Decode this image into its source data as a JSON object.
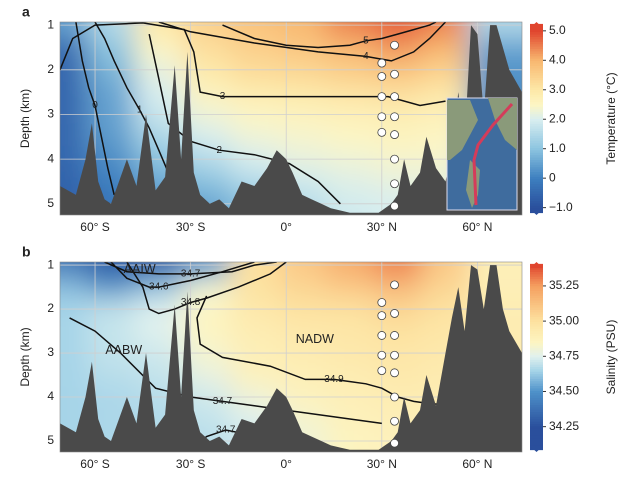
{
  "chart_data": [
    {
      "type": "contour",
      "panel": "a",
      "ylabel": "Depth (km)",
      "xlim": [
        -71,
        74
      ],
      "ylim": [
        0.93,
        5.25
      ],
      "y_inverted": true,
      "grid": true,
      "xticks": [
        {
          "value": -60,
          "label": "60° S"
        },
        {
          "value": -30,
          "label": "30° S"
        },
        {
          "value": 0,
          "label": "0°"
        },
        {
          "value": 30,
          "label": "30° N"
        },
        {
          "value": 60,
          "label": "60° N"
        }
      ],
      "yticks": [
        1,
        2,
        3,
        4,
        5
      ],
      "colorbar_label": "Temperature (°C)",
      "clim": [
        -1.25,
        5.3
      ],
      "cticks": [
        {
          "value": 5,
          "label": "5.0"
        },
        {
          "value": 4,
          "label": "4.0"
        },
        {
          "value": 3,
          "label": "3.0"
        },
        {
          "value": 2,
          "label": "2.0"
        },
        {
          "value": 1,
          "label": "1.0"
        },
        0,
        {
          "value": -1,
          "label": "−1.0"
        }
      ],
      "colorscale": [
        [
          -1,
          "#2a4f9c"
        ],
        [
          0,
          "#3d7fbf"
        ],
        [
          1,
          "#8cc4e0"
        ],
        [
          2,
          "#d8eef0"
        ],
        [
          2.5,
          "#fdf6c4"
        ],
        [
          3,
          "#fde8a8"
        ],
        [
          4,
          "#f8b870"
        ],
        [
          5,
          "#e0452e"
        ]
      ],
      "field": {
        "x": [
          -70,
          -55,
          -40,
          -25,
          -10,
          5,
          20,
          35,
          50,
          65
        ],
        "depth": [
          1,
          1.5,
          2,
          2.5,
          3,
          3.5,
          4,
          4.5,
          5
        ],
        "z": [
          [
            0.5,
            1.5,
            3,
            3.5,
            3.8,
            4,
            4.5,
            4.8,
            4.5,
            1.5
          ],
          [
            -0.5,
            1,
            2.5,
            3.2,
            3.5,
            3.7,
            4,
            4.3,
            4,
            0.5
          ],
          [
            -0.5,
            0.8,
            2.2,
            3,
            3.3,
            3.4,
            3.6,
            3.8,
            3.5,
            0.3
          ],
          [
            -0.5,
            0.5,
            2,
            2.6,
            2.9,
            3,
            3.1,
            3.2,
            3,
            0.2
          ],
          [
            -0.5,
            0.5,
            1.8,
            2.3,
            2.5,
            2.6,
            2.7,
            2.8,
            2.7,
            0.2
          ],
          [
            -0.5,
            0.4,
            1.4,
            2,
            2.3,
            2.4,
            2.5,
            2.6,
            2.5,
            0.2
          ],
          [
            -0.5,
            0.2,
            1,
            1.5,
            2,
            2.2,
            2.3,
            2.4,
            2.4,
            0.2
          ],
          [
            -0.6,
            0,
            0.6,
            1,
            1.5,
            1.9,
            2.1,
            2.2,
            2.2,
            0.2
          ],
          [
            -0.6,
            -0.2,
            0.3,
            0.5,
            1,
            1.5,
            1.9,
            2,
            2.1,
            0.2
          ]
        ]
      },
      "contours": [
        {
          "label": "0",
          "x": [
            -66,
            -64,
            -62,
            -60,
            -58,
            -56,
            -54
          ],
          "depth": [
            0.93,
            1.8,
            2.4,
            2.8,
            3.5,
            4.2,
            4.8
          ]
        },
        {
          "label": "1",
          "x": [
            -60,
            -57,
            -54,
            -50,
            -46,
            -43,
            -40,
            -37
          ],
          "depth": [
            0.93,
            1.3,
            1.8,
            2.4,
            2.9,
            3.3,
            3.8,
            4.3
          ]
        },
        {
          "label": "2",
          "x": [
            -43,
            -40,
            -37,
            -30,
            -21,
            -10,
            1,
            10,
            17
          ],
          "depth": [
            1.2,
            2.2,
            3.2,
            3.6,
            3.8,
            3.9,
            4.1,
            4.5,
            5.0
          ]
        },
        {
          "label": "3",
          "x": [
            -71,
            -67,
            -60,
            -45,
            -32,
            -29,
            -27,
            -20,
            0,
            9,
            20,
            32,
            42,
            50
          ],
          "depth": [
            2.0,
            1.3,
            1.0,
            0.95,
            1.1,
            1.6,
            2.5,
            2.6,
            2.6,
            2.6,
            2.6,
            2.6,
            2.8,
            2.7
          ]
        },
        {
          "label": "4",
          "x": [
            -40,
            -30,
            -10,
            10,
            25,
            33,
            40,
            45,
            50
          ],
          "depth": [
            0.93,
            1.15,
            1.4,
            1.6,
            1.7,
            1.8,
            1.6,
            1.3,
            0.93
          ]
        },
        {
          "label": "5",
          "x": [
            -20,
            -10,
            0,
            10,
            20,
            25,
            30,
            35,
            40,
            45,
            47
          ],
          "depth": [
            1.0,
            1.3,
            1.45,
            1.5,
            1.45,
            1.35,
            1.3,
            1.2,
            1.1,
            1.0,
            0.93
          ]
        }
      ],
      "seafloor": {
        "color": "#4a4a4a",
        "x": [
          -71,
          -66,
          -63,
          -61,
          -59,
          -57,
          -55,
          -53,
          -50,
          -47,
          -44,
          -41,
          -38,
          -35,
          -33,
          -31,
          -29,
          -27,
          -24,
          -21,
          -18,
          -14,
          -10,
          -6,
          -3,
          0,
          2,
          5,
          8,
          11,
          14,
          17,
          20,
          23,
          26,
          29,
          31,
          33,
          35,
          37,
          39,
          42,
          44,
          47,
          50,
          52,
          54,
          56,
          58,
          60,
          62,
          64,
          66,
          68,
          70,
          74
        ],
        "depth": [
          4.6,
          4.8,
          4.0,
          3.2,
          4.5,
          4.9,
          5.0,
          4.6,
          4.0,
          4.6,
          3.0,
          4.7,
          4.4,
          1.9,
          4.0,
          1.6,
          4.3,
          4.8,
          5.0,
          4.9,
          5.1,
          4.5,
          4.6,
          4.2,
          3.8,
          4.0,
          4.3,
          4.8,
          4.9,
          5.0,
          5.1,
          5.15,
          5.2,
          5.2,
          5.2,
          5.2,
          5.1,
          5.0,
          4.8,
          4.0,
          4.6,
          4.3,
          3.5,
          4.2,
          4.5,
          3.8,
          2.5,
          3.6,
          1.0,
          1.2,
          3.0,
          1.0,
          1.0,
          1.5,
          2.0,
          2.5
        ]
      },
      "stations": {
        "x": [
          30,
          30,
          30,
          30,
          30,
          34,
          34,
          34,
          34,
          34,
          34,
          34,
          34
        ],
        "depth": [
          1.85,
          2.15,
          2.6,
          3.05,
          3.4,
          1.45,
          2.1,
          2.6,
          3.05,
          3.45,
          4.0,
          4.55,
          5.05
        ]
      }
    },
    {
      "type": "contour",
      "panel": "b",
      "ylabel": "Depth (km)",
      "xlim": [
        -71,
        74
      ],
      "ylim": [
        0.93,
        5.25
      ],
      "y_inverted": true,
      "grid": true,
      "xticks": [
        {
          "value": -60,
          "label": "60° S"
        },
        {
          "value": -30,
          "label": "30° S"
        },
        {
          "value": 0,
          "label": "0°"
        },
        {
          "value": 30,
          "label": "30° N"
        },
        {
          "value": 60,
          "label": "60° N"
        }
      ],
      "yticks": [
        1,
        2,
        3,
        4,
        5
      ],
      "colorbar_label": "Salinity (PSU)",
      "clim": [
        34.07,
        35.42
      ],
      "cticks": [
        35.25,
        {
          "value": 35,
          "label": "35.00"
        },
        34.75,
        {
          "value": 34.5,
          "label": "34.50"
        },
        34.25
      ],
      "colorscale": [
        [
          34.25,
          "#2a4f9c"
        ],
        [
          34.5,
          "#4e91c9"
        ],
        [
          34.65,
          "#a6d4e8"
        ],
        [
          34.75,
          "#e0f1ee"
        ],
        [
          34.85,
          "#fdf5c2"
        ],
        [
          35,
          "#fde2a0"
        ],
        [
          35.25,
          "#f5a060"
        ],
        [
          35.4,
          "#e0452e"
        ]
      ],
      "field": {
        "x": [
          -70,
          -55,
          -40,
          -25,
          -10,
          5,
          20,
          35,
          50,
          65
        ],
        "depth": [
          1,
          1.5,
          2,
          2.5,
          3,
          3.5,
          4,
          4.5,
          5
        ],
        "z": [
          [
            34.4,
            34.3,
            34.3,
            34.5,
            35.0,
            35.1,
            35.2,
            35.3,
            35.1,
            34.9
          ],
          [
            34.6,
            34.5,
            34.6,
            34.8,
            35.0,
            35.05,
            35.1,
            35.15,
            35.05,
            34.9
          ],
          [
            34.65,
            34.7,
            34.75,
            34.85,
            34.95,
            35.0,
            35.0,
            35.05,
            35.0,
            34.92
          ],
          [
            34.65,
            34.7,
            34.75,
            34.85,
            34.92,
            34.95,
            34.97,
            35.0,
            34.97,
            34.92
          ],
          [
            34.65,
            34.7,
            34.72,
            34.82,
            34.9,
            34.93,
            34.95,
            34.97,
            34.95,
            34.92
          ],
          [
            34.65,
            34.68,
            34.7,
            34.78,
            34.88,
            34.9,
            34.92,
            34.95,
            34.93,
            34.92
          ],
          [
            34.65,
            34.66,
            34.68,
            34.72,
            34.8,
            34.87,
            34.9,
            34.92,
            34.92,
            34.92
          ],
          [
            34.65,
            34.66,
            34.67,
            34.7,
            34.75,
            34.82,
            34.88,
            34.9,
            34.9,
            34.92
          ],
          [
            34.65,
            34.66,
            34.67,
            34.68,
            34.72,
            34.8,
            34.86,
            34.88,
            34.9,
            34.92
          ]
        ]
      },
      "contours": [
        {
          "label": "34.7",
          "x": [
            -57,
            -50,
            -40,
            -30,
            -17,
            -10,
            -3
          ],
          "depth": [
            0.93,
            1.15,
            1.2,
            1.2,
            1.15,
            1.0,
            0.93
          ]
        },
        {
          "label": "34.6",
          "x": [
            -55,
            -50,
            -43,
            -40,
            -30,
            -20,
            -10
          ],
          "depth": [
            0.93,
            1.3,
            1.5,
            1.5,
            1.35,
            1.15,
            0.93
          ]
        },
        {
          "label": "34.8",
          "x": [
            -50,
            -45,
            -43,
            -40,
            -35,
            -30,
            -25,
            -15,
            -5,
            0
          ],
          "depth": [
            0.93,
            1.5,
            2.0,
            2.1,
            2.0,
            1.85,
            1.75,
            1.5,
            1.2,
            0.93
          ]
        },
        {
          "label": "34.9",
          "x": [
            -25,
            -28,
            -27,
            -20,
            -5,
            6,
            15,
            25,
            30,
            35,
            40,
            45,
            55
          ],
          "depth": [
            1.7,
            2.2,
            2.8,
            3.1,
            3.3,
            3.6,
            3.6,
            3.7,
            3.8,
            4.0,
            4.1,
            4.15,
            4.2
          ]
        },
        {
          "label": "34.7",
          "x": [
            -68,
            -60,
            -52,
            -41,
            -30,
            -20,
            -10,
            0,
            10,
            20,
            30
          ],
          "depth": [
            2.2,
            2.5,
            3.0,
            3.8,
            4.0,
            4.1,
            4.2,
            4.3,
            4.4,
            4.5,
            4.6
          ]
        },
        {
          "label": "34.7",
          "x": [
            -30,
            -25,
            -19,
            -12,
            -5
          ],
          "depth": [
            5.2,
            4.9,
            4.75,
            4.85,
            5.2
          ]
        }
      ],
      "annotations": [
        {
          "text": "AAIW",
          "x": -46,
          "depth": 1.1
        },
        {
          "text": "AABW",
          "x": -51,
          "depth": 2.95
        },
        {
          "text": "NADW",
          "x": 9,
          "depth": 2.7
        }
      ],
      "seafloor": {
        "color": "#4a4a4a",
        "x": [
          -71,
          -66,
          -63,
          -61,
          -59,
          -57,
          -55,
          -53,
          -50,
          -47,
          -44,
          -41,
          -38,
          -35,
          -33,
          -31,
          -29,
          -27,
          -24,
          -21,
          -18,
          -14,
          -10,
          -6,
          -3,
          0,
          2,
          5,
          8,
          11,
          14,
          17,
          20,
          23,
          26,
          29,
          31,
          33,
          35,
          37,
          39,
          42,
          44,
          47,
          50,
          52,
          54,
          56,
          58,
          60,
          62,
          64,
          66,
          68,
          70,
          74
        ],
        "depth": [
          4.6,
          4.8,
          4.0,
          3.2,
          4.5,
          4.9,
          5.0,
          4.6,
          4.0,
          4.6,
          3.0,
          4.7,
          4.4,
          1.9,
          4.0,
          1.6,
          4.3,
          4.8,
          5.0,
          4.9,
          5.1,
          4.5,
          4.6,
          4.2,
          3.8,
          4.0,
          4.3,
          4.8,
          4.9,
          5.0,
          5.1,
          5.15,
          5.2,
          5.2,
          5.2,
          5.2,
          5.1,
          5.0,
          4.8,
          4.0,
          4.6,
          4.3,
          3.5,
          4.2,
          3.0,
          2.2,
          1.5,
          2.5,
          1.0,
          1.1,
          2.0,
          1.0,
          1.0,
          2.0,
          2.5,
          3.0
        ]
      },
      "stations": {
        "x": [
          30,
          30,
          30,
          30,
          30,
          34,
          34,
          34,
          34,
          34,
          34,
          34,
          34
        ],
        "depth": [
          1.85,
          2.15,
          2.6,
          3.05,
          3.4,
          1.45,
          2.1,
          2.6,
          3.05,
          3.45,
          4.0,
          4.55,
          5.05
        ]
      }
    }
  ]
}
